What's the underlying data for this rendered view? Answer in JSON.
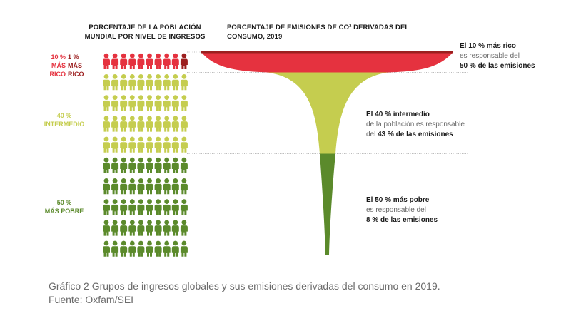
{
  "chart_data": {
    "type": "funnel",
    "left_title_line1": "PORCENTAJE DE LA POBLACIÓN",
    "left_title_line2": "MUNDIAL POR NIVEL DE INGRESOS",
    "right_title": "PORCENTAJE DE EMISIONES DE CO² DERIVADAS DEL CONSUMO, 2019",
    "groups": [
      {
        "name": "10 % más rico",
        "label_pct": "10 %",
        "label_name": "MÁS RICO",
        "population_pct": 10,
        "emissions_pct": 50,
        "color": "#e5323f",
        "note_line1": "El 10 % más rico",
        "note_line2": "es responsable del",
        "note_line3": "50 % de las emisiones"
      },
      {
        "name": "40 % intermedio",
        "label_pct": "40 %",
        "label_name": "INTERMEDIO",
        "population_pct": 40,
        "emissions_pct": 43,
        "color": "#c5cd4f",
        "note_line1": "El 40 % intermedio",
        "note_line2": "de la población es responsable",
        "note_line3_a": "del ",
        "note_line3_b": "43 % de las emisiones"
      },
      {
        "name": "50 % más pobre",
        "label_pct": "50 %",
        "label_name": "MÁS POBRE",
        "population_pct": 50,
        "emissions_pct": 8,
        "color": "#5b8a2b",
        "note_line1": "El 50 % más pobre",
        "note_line2": "es responsable del",
        "note_line3": "8 % de las emisiones"
      }
    ],
    "top1": {
      "label_pct": "1 %",
      "label_name": "MÁS RICO",
      "population_pct": 1,
      "color": "#9c1f1f"
    },
    "grid": {
      "rows": 10,
      "cols": 10
    }
  },
  "caption": {
    "line1": "Gráfico 2 Grupos de ingresos globales y sus emisiones derivadas del consumo en 2019.",
    "line2": "Fuente: Oxfam/SEI"
  }
}
